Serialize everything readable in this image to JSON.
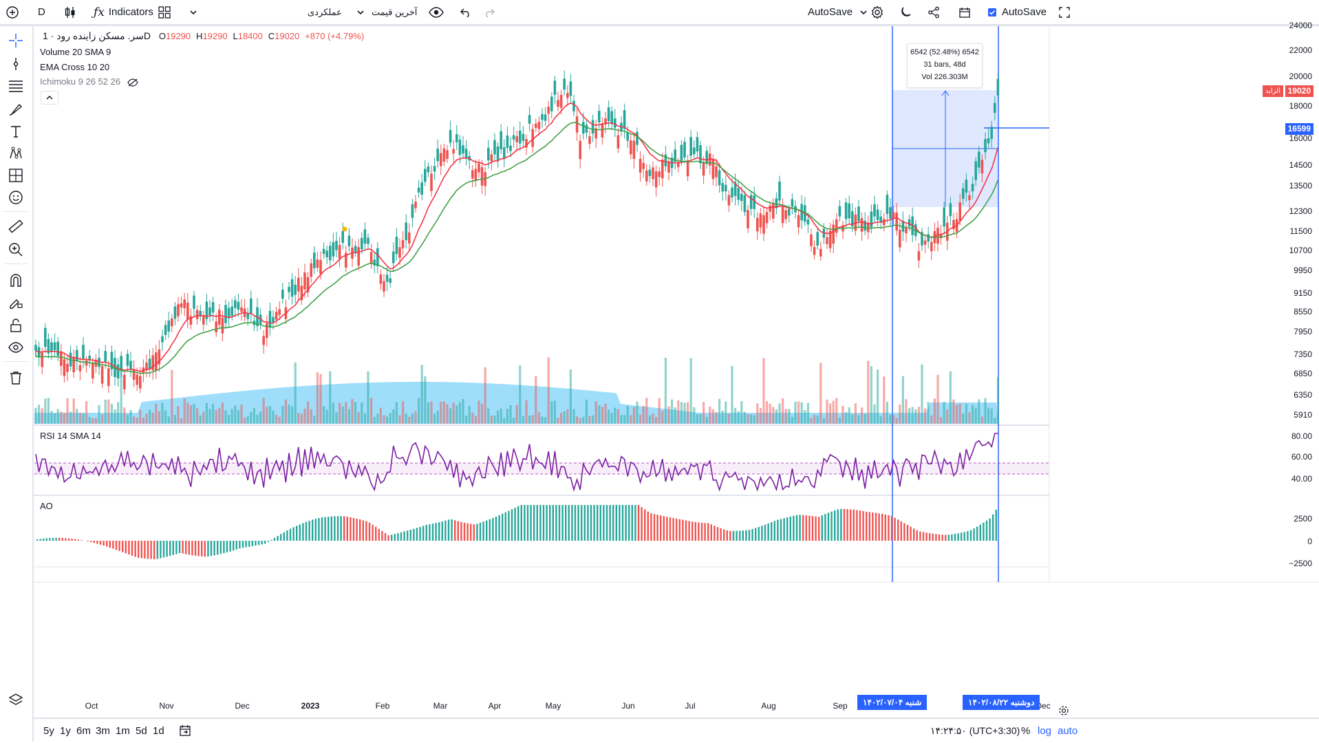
{
  "toolbar": {
    "interval": "D",
    "indicators_label": "Indicators",
    "layout_name": "عملکردی",
    "price_source": "آخرین قیمت",
    "autosave_left": "AutoSave",
    "autosave_right": "AutoSave"
  },
  "legend": {
    "symbol": "سر. مسکن زاینده رود",
    "interval": "· 1D",
    "o_label": "O",
    "o_val": "19290",
    "h_label": "H",
    "h_val": "19290",
    "l_label": "L",
    "l_val": "18400",
    "c_label": "C",
    "c_val": "19020",
    "change": "+870 (+4.79%)",
    "volume": "Volume 20 SMA 9",
    "ema": "EMA Cross 10 20",
    "ichimoku": "Ichimoku 9 26 52 26",
    "rsi": "RSI 14 SMA 14",
    "ao": "AO"
  },
  "measure": {
    "line1": "6542 (52.48%) 6542",
    "line2": "31 bars, 48d",
    "line3": "Vol 226.303M"
  },
  "price_axis": [
    "24000",
    "22000",
    "20000",
    "18000",
    "16000",
    "14500",
    "13500",
    "12300",
    "11500",
    "10700",
    "9950",
    "9150",
    "8550",
    "7950",
    "7350",
    "6850",
    "6350",
    "5910"
  ],
  "price_tags": {
    "last": "19020",
    "cross": "16599",
    "small_label": "الزاید"
  },
  "rsi_axis": [
    "80.00",
    "60.00",
    "40.00"
  ],
  "ao_axis": [
    "2500",
    "0",
    "−2500"
  ],
  "time_axis": [
    "Oct",
    "Nov",
    "Dec",
    "2023",
    "Feb",
    "Mar",
    "Apr",
    "May",
    "Jun",
    "Jul",
    "Aug",
    "Sep",
    "Dec"
  ],
  "date_labels": {
    "start": "شنبه ۱۴۰۲/۰۷/۰۴",
    "end": "دوشنبه ۱۴۰۲/۰۸/۲۲"
  },
  "bottom": {
    "ranges": [
      "5y",
      "1y",
      "6m",
      "3m",
      "1m",
      "5d",
      "1d"
    ],
    "clock": "۱۴:۲۴:۵۰ (UTC+3:30)",
    "percent": "%",
    "log": "log",
    "auto": "auto"
  },
  "colors": {
    "up": "#26a69a",
    "down": "#ef5350",
    "ema_fast": "#f23645",
    "ema_slow": "#43a047",
    "rsi": "#7b1fa2",
    "accent": "#2962ff"
  }
}
